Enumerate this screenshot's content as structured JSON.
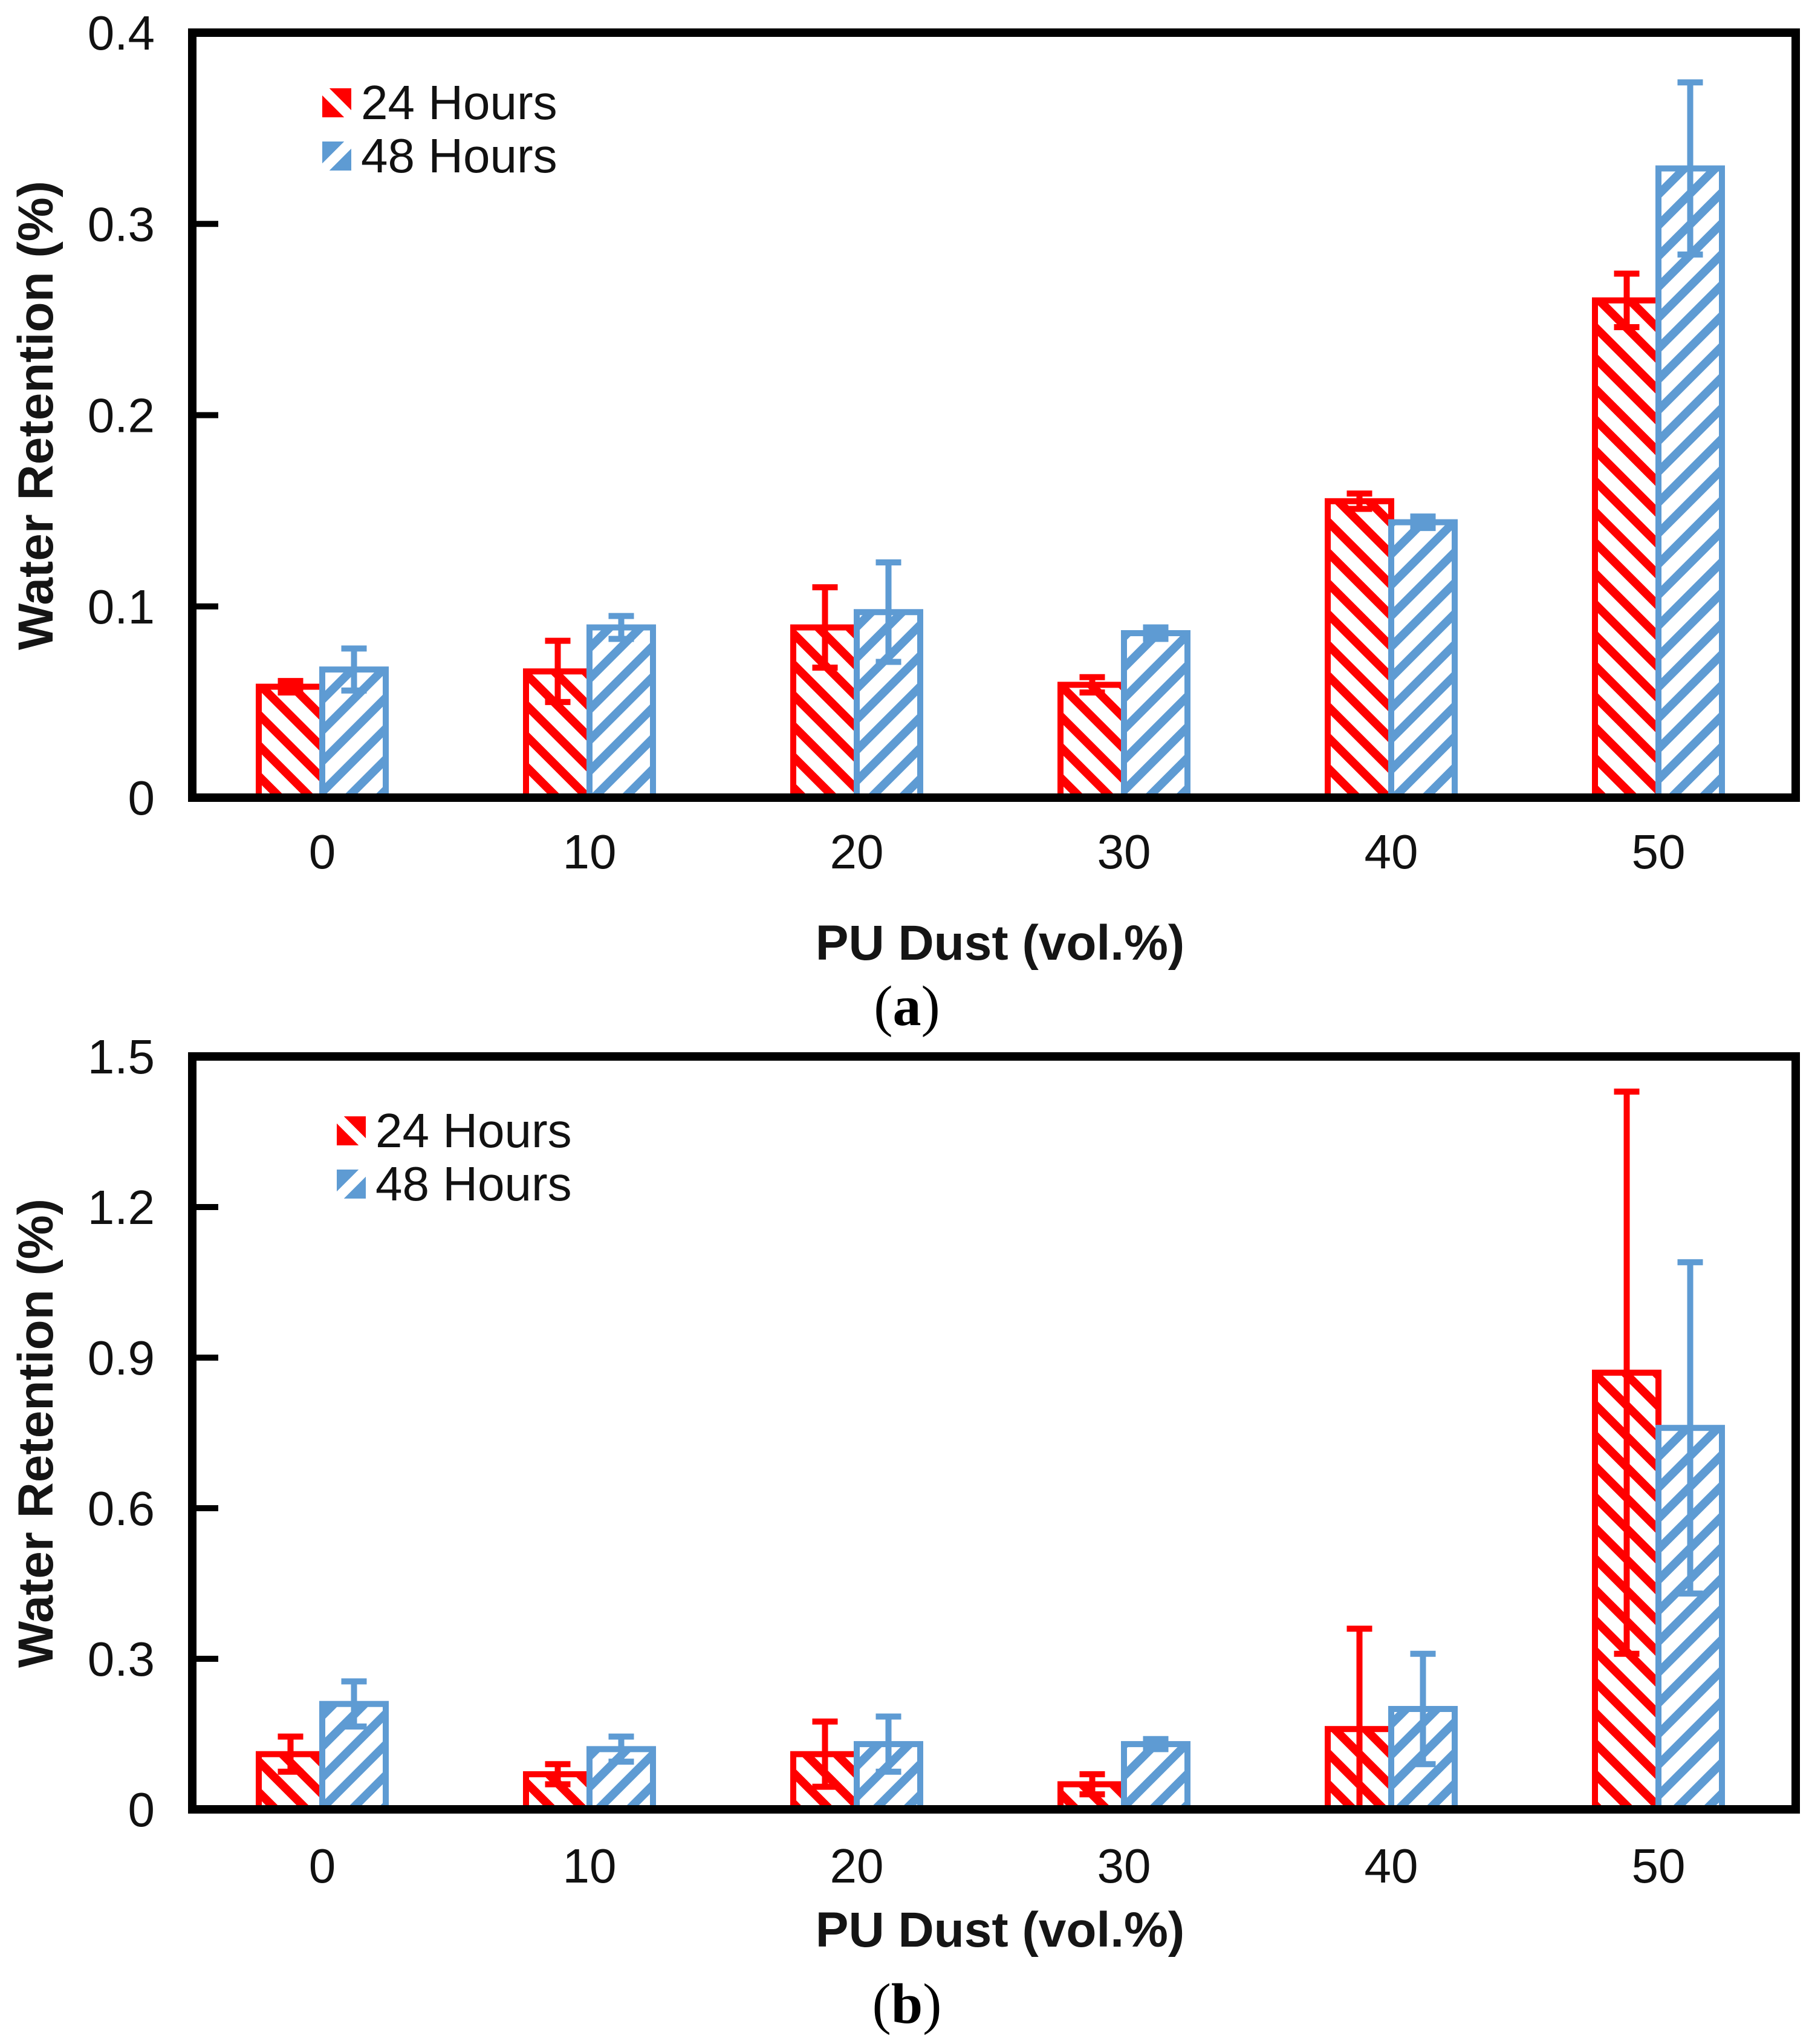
{
  "panels": [
    {
      "prefix": "(",
      "letter": "a",
      "suffix": ")"
    },
    {
      "prefix": "(",
      "letter": "b",
      "suffix": ")"
    }
  ],
  "colors": {
    "red_series": "#FF0000",
    "blue_series": "#5E9BD3",
    "axis": "#000000",
    "text": "#111111"
  },
  "chart_data": [
    {
      "type": "bar",
      "panel": "a",
      "title": "",
      "xlabel": "PU Dust (vol.%)",
      "ylabel": "Water Retention (%)",
      "categories": [
        "0",
        "10",
        "20",
        "30",
        "40",
        "50"
      ],
      "ylim": [
        0,
        0.4
      ],
      "yticks": [
        0,
        0.1,
        0.2,
        0.3,
        0.4
      ],
      "ytick_labels": [
        "0",
        "0.1",
        "0.2",
        "0.3",
        "0.4"
      ],
      "grid": false,
      "legend_position": "top-left-inside",
      "error_bars": true,
      "series": [
        {
          "name": "24 Hours",
          "color": "#FF0000",
          "hatch": "\\",
          "values": [
            0.058,
            0.066,
            0.089,
            0.059,
            0.155,
            0.26
          ],
          "errors": [
            0.003,
            0.016,
            0.021,
            0.004,
            0.004,
            0.014
          ]
        },
        {
          "name": "48 Hours",
          "color": "#5E9BD3",
          "hatch": "/",
          "values": [
            0.067,
            0.089,
            0.097,
            0.086,
            0.144,
            0.329
          ],
          "errors": [
            0.011,
            0.006,
            0.026,
            0.003,
            0.003,
            0.045
          ]
        }
      ]
    },
    {
      "type": "bar",
      "panel": "b",
      "title": "",
      "xlabel": "PU Dust (vol.%)",
      "ylabel": "Water Retention (%)",
      "categories": [
        "0",
        "10",
        "20",
        "30",
        "40",
        "50"
      ],
      "ylim": [
        0,
        1.5
      ],
      "yticks": [
        0,
        0.3,
        0.6,
        0.9,
        1.2,
        1.5
      ],
      "ytick_labels": [
        "0",
        "0.3",
        "0.6",
        "0.9",
        "1.2",
        "1.5"
      ],
      "grid": false,
      "legend_position": "top-left-inside",
      "error_bars": true,
      "series": [
        {
          "name": "24 Hours",
          "color": "#FF0000",
          "hatch": "\\",
          "values": [
            0.11,
            0.07,
            0.11,
            0.05,
            0.16,
            0.87
          ],
          "errors": [
            0.035,
            0.02,
            0.065,
            0.02,
            0.2,
            0.56
          ]
        },
        {
          "name": "48 Hours",
          "color": "#5E9BD3",
          "hatch": "/",
          "values": [
            0.21,
            0.12,
            0.13,
            0.13,
            0.2,
            0.76
          ],
          "errors": [
            0.045,
            0.025,
            0.055,
            0.01,
            0.11,
            0.33
          ]
        }
      ]
    }
  ]
}
